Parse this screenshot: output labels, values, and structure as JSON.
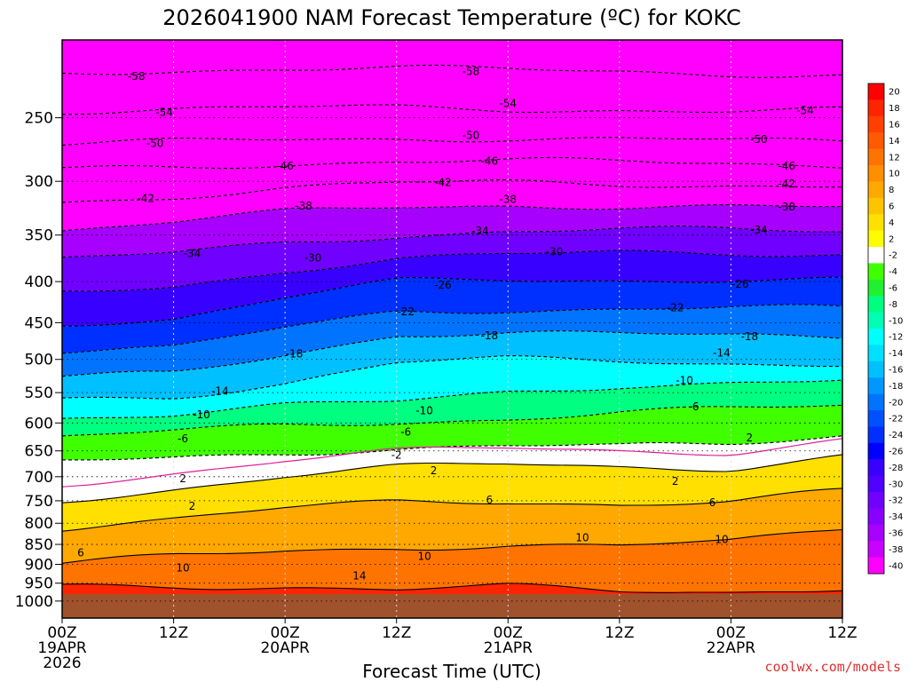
{
  "chart_data": {
    "type": "heatmap",
    "title": "2026041900 NAM Forecast Temperature (ºC) for KOKC",
    "xlabel": "Forecast Time (UTC)",
    "ylabel": "",
    "x_ticks": [
      {
        "hours": 0,
        "lines": [
          "00Z",
          "19APR",
          "2026"
        ]
      },
      {
        "hours": 12,
        "lines": [
          "12Z"
        ]
      },
      {
        "hours": 24,
        "lines": [
          "00Z",
          "20APR"
        ]
      },
      {
        "hours": 36,
        "lines": [
          "12Z"
        ]
      },
      {
        "hours": 48,
        "lines": [
          "00Z",
          "21APR"
        ]
      },
      {
        "hours": 60,
        "lines": [
          "12Z"
        ]
      },
      {
        "hours": 72,
        "lines": [
          "00Z",
          "22APR"
        ]
      },
      {
        "hours": 84,
        "lines": [
          "12Z"
        ]
      }
    ],
    "xlim": [
      0,
      84
    ],
    "y_ticks": [
      250,
      300,
      350,
      400,
      450,
      500,
      550,
      600,
      650,
      700,
      750,
      800,
      850,
      900,
      950,
      1000
    ],
    "ylim": [
      1050,
      200
    ],
    "y_scale": "log-pressure",
    "colorbar": {
      "levels": [
        20,
        18,
        16,
        14,
        12,
        10,
        8,
        6,
        4,
        2,
        -2,
        -4,
        -6,
        -8,
        -10,
        -12,
        -14,
        -16,
        -18,
        -20,
        -22,
        -24,
        -26,
        -28,
        -30,
        -32,
        -34,
        -36,
        -38,
        -40
      ],
      "colors": [
        "#ff0000",
        "#ff2400",
        "#ff4000",
        "#ff5a00",
        "#ff7400",
        "#ff8e00",
        "#ffa800",
        "#ffc400",
        "#ffe000",
        "#fffc00",
        "#ffffff",
        "#40ff00",
        "#20f030",
        "#00ff80",
        "#00ffb4",
        "#00ffff",
        "#00e0ff",
        "#00c0ff",
        "#0098ff",
        "#0074ff",
        "#0050ff",
        "#0030ff",
        "#0000ff",
        "#3800ff",
        "#5000ff",
        "#7000ff",
        "#8800ff",
        "#a800ff",
        "#c800ff",
        "#ff00ff"
      ]
    },
    "isotherms": [
      {
        "label": "-58",
        "y": [
          220,
          218,
          217,
          217,
          218,
          219,
          220,
          221
        ]
      },
      {
        "label": "-54",
        "y": [
          245,
          244,
          243,
          243,
          244,
          244,
          245,
          245
        ]
      },
      {
        "label": "-50",
        "y": [
          270,
          268,
          266,
          265,
          265,
          266,
          267,
          268
        ]
      },
      {
        "label": "-46",
        "y": [
          290,
          288,
          285,
          283,
          283,
          284,
          285,
          286
        ]
      },
      {
        "label": "-42",
        "y": [
          318,
          313,
          306,
          302,
          301,
          302,
          303,
          304
        ]
      },
      {
        "label": "-38",
        "y": [
          345,
          337,
          328,
          323,
          321,
          322,
          323,
          324
        ]
      },
      {
        "label": "-34",
        "y": [
          376,
          369,
          357,
          350,
          346,
          345,
          345,
          346
        ]
      },
      {
        "label": "-30",
        "y": [
          413,
          405,
          387,
          375,
          371,
          368,
          368,
          369
        ]
      },
      {
        "label": "-26",
        "y": [
          450,
          445,
          419,
          400,
          398,
          398,
          397,
          398
        ]
      },
      {
        "label": "-22",
        "y": [
          488,
          485,
          457,
          435,
          433,
          433,
          432,
          432
        ]
      },
      {
        "label": "-18",
        "y": [
          528,
          520,
          492,
          465,
          464,
          466,
          467,
          467
        ]
      },
      {
        "label": "-14",
        "y": [
          560,
          555,
          535,
          505,
          500,
          502,
          505,
          506
        ]
      },
      {
        "label": "-10",
        "y": [
          590,
          585,
          572,
          565,
          548,
          538,
          535,
          533
        ]
      },
      {
        "label": "-6",
        "y": [
          625,
          615,
          605,
          598,
          592,
          582,
          577,
          572
        ]
      },
      {
        "label": "-2",
        "y": [
          672,
          662,
          652,
          646,
          642,
          643,
          636,
          620
        ]
      },
      {
        "label": "2",
        "y": [
          750,
          724,
          698,
          682,
          676,
          680,
          682,
          659
        ]
      },
      {
        "label": "6",
        "y": [
          810,
          792,
          768,
          752,
          750,
          757,
          752,
          730
        ]
      },
      {
        "label": "10",
        "y": [
          900,
          880,
          866,
          856,
          852,
          855,
          845,
          812
        ]
      },
      {
        "label": "14",
        "y": [
          960,
          958,
          958,
          965,
          960,
          975,
          975,
          960
        ]
      }
    ],
    "contour_labels": [
      {
        "text": "-58",
        "hours": 8,
        "p": 222
      },
      {
        "text": "-58",
        "hours": 44,
        "p": 219
      },
      {
        "text": "-54",
        "hours": 11,
        "p": 246
      },
      {
        "text": "-54",
        "hours": 48,
        "p": 240
      },
      {
        "text": "-54",
        "hours": 80,
        "p": 245
      },
      {
        "text": "-50",
        "hours": 10,
        "p": 269
      },
      {
        "text": "-50",
        "hours": 44,
        "p": 263
      },
      {
        "text": "-50",
        "hours": 75,
        "p": 266
      },
      {
        "text": "-46",
        "hours": 24,
        "p": 287
      },
      {
        "text": "-46",
        "hours": 46,
        "p": 283
      },
      {
        "text": "-46",
        "hours": 78,
        "p": 287
      },
      {
        "text": "-42",
        "hours": 9,
        "p": 315
      },
      {
        "text": "-42",
        "hours": 41,
        "p": 301
      },
      {
        "text": "-42",
        "hours": 78,
        "p": 302
      },
      {
        "text": "-38",
        "hours": 26,
        "p": 322
      },
      {
        "text": "-38",
        "hours": 48,
        "p": 316
      },
      {
        "text": "-38",
        "hours": 78,
        "p": 323
      },
      {
        "text": "-34",
        "hours": 14,
        "p": 369
      },
      {
        "text": "-34",
        "hours": 45,
        "p": 346
      },
      {
        "text": "-34",
        "hours": 75,
        "p": 345
      },
      {
        "text": "-30",
        "hours": 27,
        "p": 374
      },
      {
        "text": "-30",
        "hours": 53,
        "p": 367
      },
      {
        "text": "-26",
        "hours": 41,
        "p": 404
      },
      {
        "text": "-26",
        "hours": 73,
        "p": 403
      },
      {
        "text": "-22",
        "hours": 37,
        "p": 436
      },
      {
        "text": "-22",
        "hours": 66,
        "p": 431
      },
      {
        "text": "-18",
        "hours": 25,
        "p": 492
      },
      {
        "text": "-18",
        "hours": 46,
        "p": 467
      },
      {
        "text": "-18",
        "hours": 74,
        "p": 468
      },
      {
        "text": "-14",
        "hours": 17,
        "p": 548
      },
      {
        "text": "-14",
        "hours": 71,
        "p": 491
      },
      {
        "text": "-10",
        "hours": 15,
        "p": 586
      },
      {
        "text": "-10",
        "hours": 39,
        "p": 579
      },
      {
        "text": "-10",
        "hours": 67,
        "p": 531
      },
      {
        "text": "-6",
        "hours": 13,
        "p": 628
      },
      {
        "text": "-6",
        "hours": 37,
        "p": 616
      },
      {
        "text": "-6",
        "hours": 68,
        "p": 573
      },
      {
        "text": "-2",
        "hours": 36,
        "p": 658
      },
      {
        "text": "2",
        "hours": 13,
        "p": 704
      },
      {
        "text": "2",
        "hours": 40,
        "p": 688
      },
      {
        "text": "2",
        "hours": 66,
        "p": 709
      },
      {
        "text": "2",
        "hours": 14,
        "p": 762
      },
      {
        "text": "2",
        "hours": 74,
        "p": 626
      },
      {
        "text": "6",
        "hours": 2,
        "p": 871
      },
      {
        "text": "6",
        "hours": 46,
        "p": 748
      },
      {
        "text": "6",
        "hours": 70,
        "p": 754
      },
      {
        "text": "10",
        "hours": 13,
        "p": 909
      },
      {
        "text": "10",
        "hours": 39,
        "p": 880
      },
      {
        "text": "10",
        "hours": 56,
        "p": 834
      },
      {
        "text": "10",
        "hours": 71,
        "p": 838
      },
      {
        "text": "14",
        "hours": 32,
        "p": 930
      }
    ],
    "ground_pressure": 980
  },
  "credit": "coolwx.com/models"
}
